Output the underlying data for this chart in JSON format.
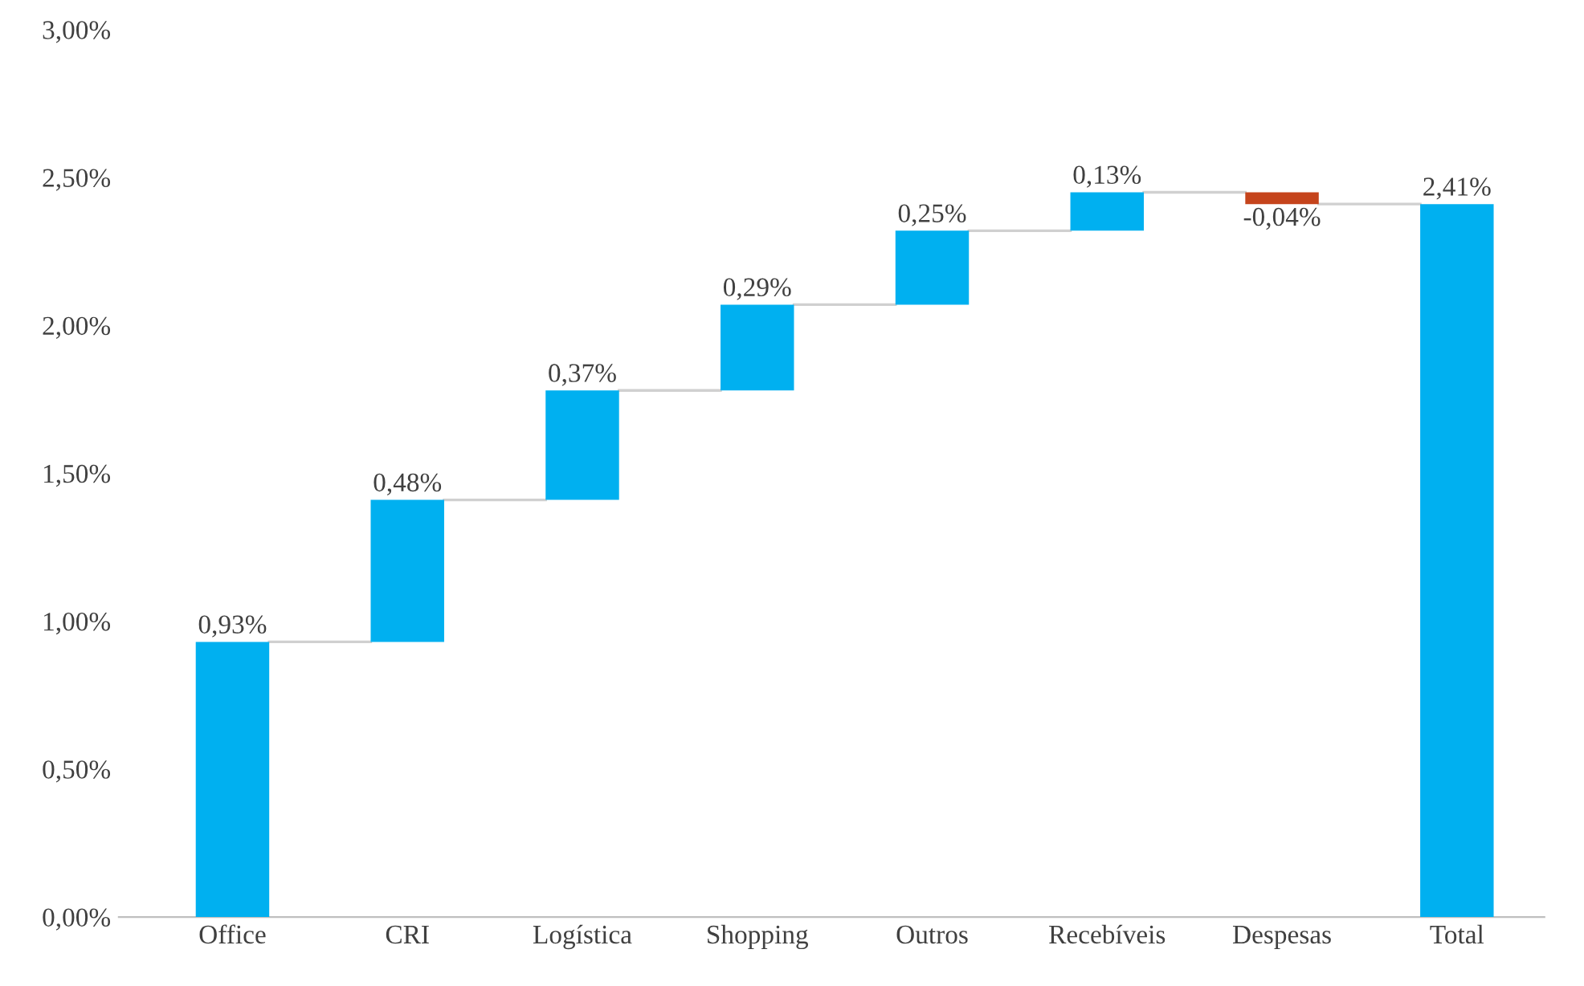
{
  "chart_data": {
    "type": "bar",
    "categories": [
      "Office",
      "CRI",
      "Logística",
      "Shopping",
      "Outros",
      "Recebíveis",
      "Despesas",
      "Total"
    ],
    "values": [
      0.93,
      0.48,
      0.37,
      0.29,
      0.25,
      0.13,
      -0.04,
      2.41
    ],
    "base": [
      0,
      0.93,
      1.41,
      1.78,
      2.07,
      2.32,
      2.45,
      0
    ],
    "colors": [
      "#00b0f0",
      "#00b0f0",
      "#00b0f0",
      "#00b0f0",
      "#00b0f0",
      "#00b0f0",
      "#c5441c",
      "#00b0f0"
    ],
    "value_labels": [
      "0,93%",
      "0,48%",
      "0,37%",
      "0,29%",
      "0,25%",
      "0,13%",
      "-0,04%",
      "2,41%"
    ],
    "ylim": [
      0,
      3
    ],
    "yticks": [
      {
        "value": 0,
        "label": "0,00%"
      },
      {
        "value": 0.5,
        "label": "0,50%"
      },
      {
        "value": 1,
        "label": "1,00%"
      },
      {
        "value": 1.5,
        "label": "1,50%"
      },
      {
        "value": 2,
        "label": "2,00%"
      },
      {
        "value": 2.5,
        "label": "2,50%"
      },
      {
        "value": 3,
        "label": "3,00%"
      }
    ],
    "grid": false
  }
}
